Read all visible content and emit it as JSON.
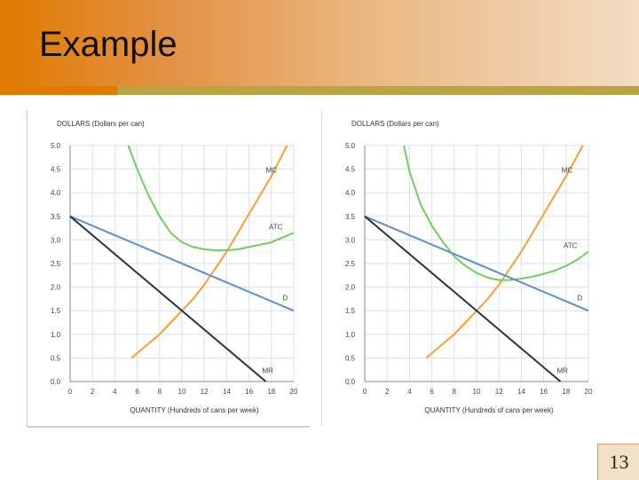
{
  "slide": {
    "title": "Example",
    "page_number": "13"
  },
  "colors": {
    "mc": "#f5a030",
    "atc": "#6fcf5f",
    "d": "#5b8fd0",
    "mr": "#333333",
    "grid": "#d8e0ea"
  },
  "chart_data": [
    {
      "type": "line",
      "ylabel": "DOLLARS (Dollars per can)",
      "xlabel": "QUANTITY (Hundreds of cans per week)",
      "xlim": [
        0,
        20
      ],
      "ylim": [
        0,
        5
      ],
      "x_ticks": [
        "0",
        "2",
        "4",
        "6",
        "8",
        "10",
        "12",
        "14",
        "16",
        "18",
        "20"
      ],
      "y_ticks": [
        "0.0",
        "0.5",
        "1.0",
        "1.5",
        "2.0",
        "2.5",
        "3.0",
        "3.5",
        "4.0",
        "4.5",
        "5.0"
      ],
      "grid": true,
      "series": [
        {
          "name": "MC",
          "key": "mc",
          "x": [
            5.5,
            7,
            8,
            9,
            10,
            11,
            12,
            13,
            14,
            15,
            16,
            17,
            18,
            19.4
          ],
          "y": [
            0.5,
            0.8,
            1.0,
            1.25,
            1.5,
            1.75,
            2.05,
            2.4,
            2.75,
            3.15,
            3.55,
            3.95,
            4.35,
            5.0
          ]
        },
        {
          "name": "ATC",
          "key": "atc",
          "x": [
            5.2,
            6,
            7,
            8,
            9,
            10,
            11,
            12,
            13,
            14,
            15,
            16,
            17,
            18,
            19,
            20
          ],
          "y": [
            5.0,
            4.5,
            3.95,
            3.5,
            3.15,
            2.95,
            2.85,
            2.8,
            2.78,
            2.78,
            2.8,
            2.85,
            2.9,
            2.95,
            3.05,
            3.15
          ]
        },
        {
          "name": "D",
          "key": "d",
          "x": [
            0,
            20
          ],
          "y": [
            3.5,
            1.5
          ]
        },
        {
          "name": "MR",
          "key": "mr",
          "x": [
            0,
            17.5
          ],
          "y": [
            3.5,
            0.0
          ]
        }
      ]
    },
    {
      "type": "line",
      "ylabel": "DOLLARS (Dollars per can)",
      "xlabel": "QUANTITY (Hundreds of cans per week)",
      "xlim": [
        0,
        20
      ],
      "ylim": [
        0,
        5
      ],
      "x_ticks": [
        "0",
        "2",
        "4",
        "6",
        "8",
        "10",
        "12",
        "14",
        "16",
        "18",
        "20"
      ],
      "y_ticks": [
        "0.0",
        "0.5",
        "1.0",
        "1.5",
        "2.0",
        "2.5",
        "3.0",
        "3.5",
        "4.0",
        "4.5",
        "5.0"
      ],
      "grid": true,
      "series": [
        {
          "name": "MC",
          "key": "mc",
          "x": [
            5.5,
            7,
            8,
            9,
            10,
            11,
            12,
            13,
            14,
            15,
            16,
            17,
            18,
            19.5
          ],
          "y": [
            0.5,
            0.8,
            1.0,
            1.25,
            1.5,
            1.75,
            2.05,
            2.4,
            2.75,
            3.15,
            3.55,
            3.95,
            4.35,
            5.0
          ]
        },
        {
          "name": "ATC",
          "key": "atc",
          "x": [
            3.5,
            4,
            5,
            6,
            7,
            8,
            9,
            10,
            11,
            12,
            13,
            14,
            15,
            16,
            17,
            18,
            19,
            20
          ],
          "y": [
            5.0,
            4.45,
            3.75,
            3.3,
            2.95,
            2.65,
            2.45,
            2.3,
            2.2,
            2.15,
            2.15,
            2.18,
            2.22,
            2.28,
            2.35,
            2.45,
            2.58,
            2.75
          ]
        },
        {
          "name": "D",
          "key": "d",
          "x": [
            0,
            20
          ],
          "y": [
            3.5,
            1.5
          ]
        },
        {
          "name": "MR",
          "key": "mr",
          "x": [
            0,
            17.5
          ],
          "y": [
            3.5,
            0.0
          ]
        }
      ]
    }
  ]
}
